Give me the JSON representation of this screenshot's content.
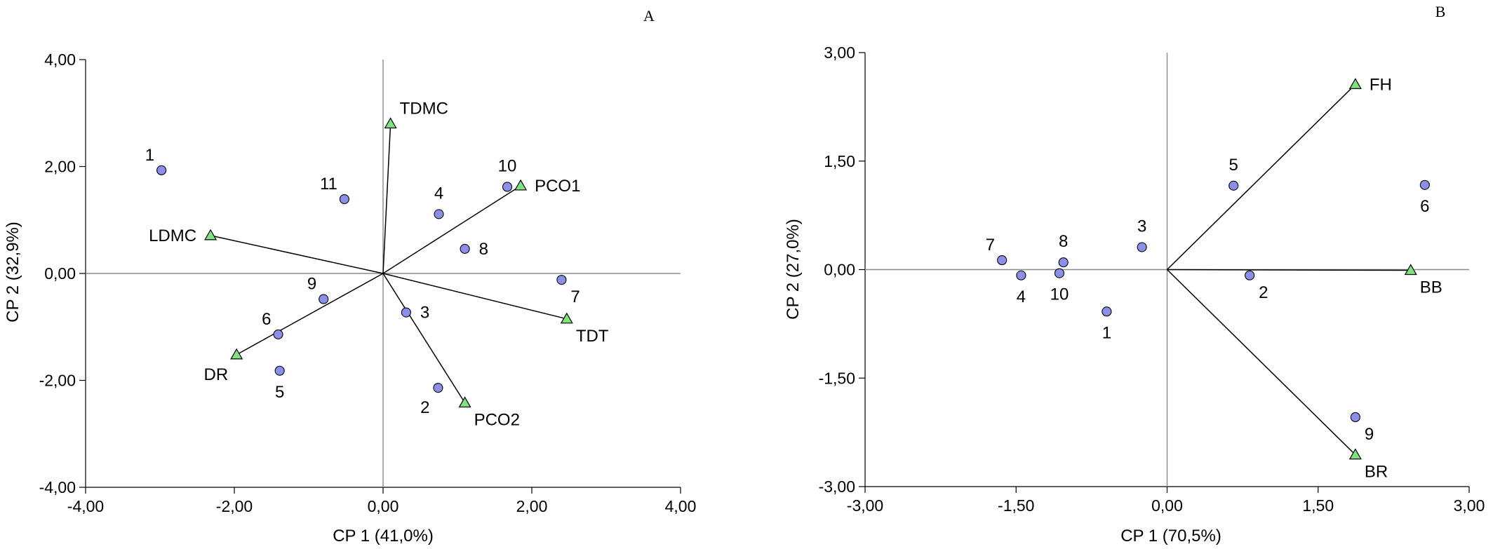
{
  "chart_data": [
    {
      "type": "scatter",
      "subtype": "biplot",
      "panel": "A",
      "xlabel": "CP 1 (41,0%)",
      "ylabel": "CP 2 (32,9%)",
      "xlim": [
        -4,
        4
      ],
      "ylim": [
        -4,
        4
      ],
      "xticks": [
        -4,
        -2,
        0,
        2,
        4
      ],
      "yticks": [
        -4,
        -2,
        0,
        2,
        4
      ],
      "xtick_labels": [
        "-4,00",
        "-2,00",
        "0,00",
        "2,00",
        "4,00"
      ],
      "ytick_labels": [
        "-4,00",
        "-2,00",
        "0,00",
        "2,00",
        "4,00"
      ],
      "point_color": "#8c8fe8",
      "vector_color": "#7ee37e",
      "points": [
        {
          "label": "1",
          "x": -2.98,
          "y": 1.93,
          "label_pos": "up-left"
        },
        {
          "label": "2",
          "x": 0.74,
          "y": -2.14,
          "label_pos": "down-left"
        },
        {
          "label": "3",
          "x": 0.31,
          "y": -0.73,
          "label_pos": "right"
        },
        {
          "label": "4",
          "x": 0.75,
          "y": 1.11,
          "label_pos": "up"
        },
        {
          "label": "5",
          "x": -1.39,
          "y": -1.82,
          "label_pos": "down"
        },
        {
          "label": "6",
          "x": -1.41,
          "y": -1.14,
          "label_pos": "up-left"
        },
        {
          "label": "7",
          "x": 2.4,
          "y": -0.12,
          "label_pos": "down-right"
        },
        {
          "label": "8",
          "x": 1.1,
          "y": 0.46,
          "label_pos": "right"
        },
        {
          "label": "9",
          "x": -0.8,
          "y": -0.48,
          "label_pos": "up-left"
        },
        {
          "label": "10",
          "x": 1.67,
          "y": 1.62,
          "label_pos": "up"
        },
        {
          "label": "11",
          "x": -0.52,
          "y": 1.39,
          "label_pos": "up-left"
        }
      ],
      "vectors": [
        {
          "label": "TDMC",
          "x": 0.1,
          "y": 2.8,
          "label_pos": "up-right"
        },
        {
          "label": "PCO1",
          "x": 1.85,
          "y": 1.64,
          "label_pos": "right"
        },
        {
          "label": "LDMC",
          "x": -2.32,
          "y": 0.71,
          "label_pos": "left"
        },
        {
          "label": "TDT",
          "x": 2.47,
          "y": -0.85,
          "label_pos": "down-right"
        },
        {
          "label": "DR",
          "x": -1.97,
          "y": -1.52,
          "label_pos": "down-left"
        },
        {
          "label": "PCO2",
          "x": 1.1,
          "y": -2.42,
          "label_pos": "down-right"
        }
      ]
    },
    {
      "type": "scatter",
      "subtype": "biplot",
      "panel": "B",
      "xlabel": "CP 1 (70,5%)",
      "ylabel": "CP 2 (27,0%)",
      "xlim": [
        -3,
        3
      ],
      "ylim": [
        -3,
        3
      ],
      "xticks": [
        -3,
        -1.5,
        0,
        1.5,
        3
      ],
      "yticks": [
        -3,
        -1.5,
        0,
        1.5,
        3
      ],
      "xtick_labels": [
        "-3,00",
        "-1,50",
        "0,00",
        "1,50",
        "3,00"
      ],
      "ytick_labels": [
        "-3,00",
        "-1,50",
        "0,00",
        "1,50",
        "3,00"
      ],
      "point_color": "#8c8fe8",
      "vector_color": "#7ee37e",
      "points": [
        {
          "label": "1",
          "x": -0.6,
          "y": -0.58,
          "label_pos": "down"
        },
        {
          "label": "2",
          "x": 0.82,
          "y": -0.08,
          "label_pos": "down-right"
        },
        {
          "label": "3",
          "x": -0.25,
          "y": 0.31,
          "label_pos": "up"
        },
        {
          "label": "4",
          "x": -1.45,
          "y": -0.08,
          "label_pos": "down"
        },
        {
          "label": "5",
          "x": 0.66,
          "y": 1.16,
          "label_pos": "up"
        },
        {
          "label": "6",
          "x": 2.56,
          "y": 1.17,
          "label_pos": "down"
        },
        {
          "label": "7",
          "x": -1.64,
          "y": 0.13,
          "label_pos": "up-left"
        },
        {
          "label": "8",
          "x": -1.03,
          "y": 0.1,
          "label_pos": "up"
        },
        {
          "label": "9",
          "x": 1.87,
          "y": -2.04,
          "label_pos": "down-right"
        },
        {
          "label": "10",
          "x": -1.07,
          "y": -0.05,
          "label_pos": "down"
        }
      ],
      "vectors": [
        {
          "label": "FH",
          "x": 1.87,
          "y": 2.56,
          "label_pos": "right"
        },
        {
          "label": "BB",
          "x": 2.42,
          "y": -0.01,
          "label_pos": "down-right"
        },
        {
          "label": "BR",
          "x": 1.87,
          "y": -2.56,
          "label_pos": "down-right"
        }
      ]
    }
  ]
}
